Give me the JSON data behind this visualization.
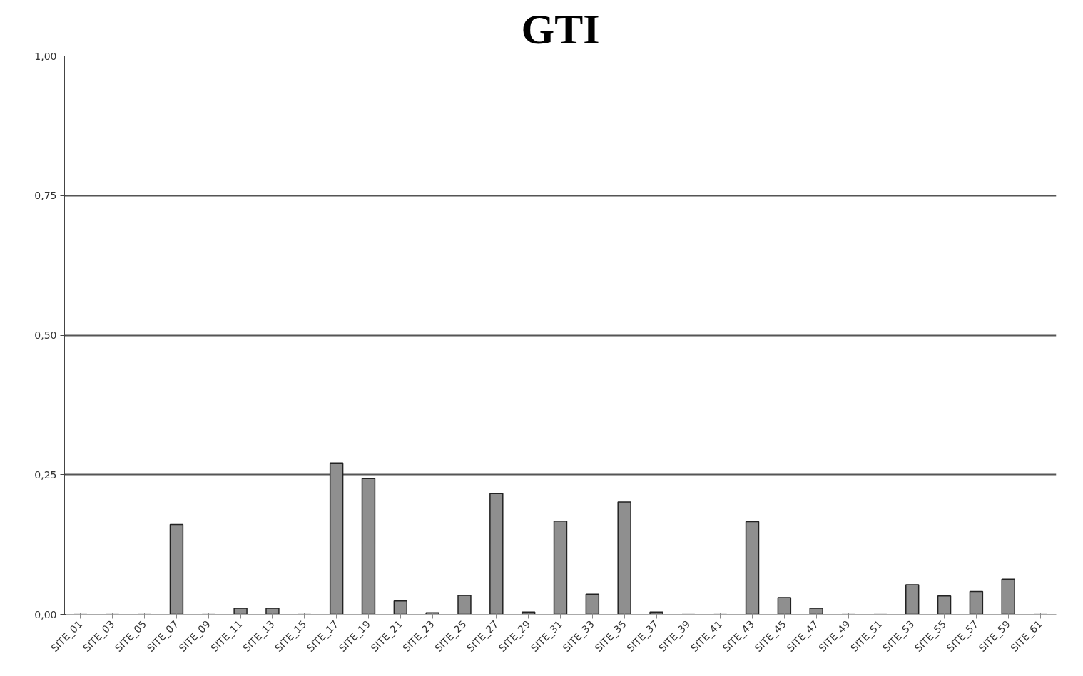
{
  "chart_data": {
    "type": "bar",
    "title": "GTI",
    "categories": [
      "SITE_01",
      "SITE_03",
      "SITE_05",
      "SITE_07",
      "SITE_09",
      "SITE_11",
      "SITE_13",
      "SITE_15",
      "SITE_17",
      "SITE_19",
      "SITE_21",
      "SITE_23",
      "SITE_25",
      "SITE_27",
      "SITE_29",
      "SITE_31",
      "SITE_33",
      "SITE_35",
      "SITE_37",
      "SITE_39",
      "SITE_41",
      "SITE_43",
      "SITE_45",
      "SITE_47",
      "SITE_49",
      "SITE_51",
      "SITE_53",
      "SITE_55",
      "SITE_57",
      "SITE_59",
      "SITE_61"
    ],
    "values": [
      0,
      0,
      0,
      0.161,
      0,
      0.011,
      0.011,
      0,
      0.271,
      0.243,
      0.024,
      0.003,
      0.034,
      0.216,
      0.004,
      0.167,
      0.036,
      0.201,
      0.004,
      0,
      0,
      0.166,
      0.03,
      0.011,
      0,
      0,
      0.053,
      0.033,
      0.041,
      0.063,
      0
    ],
    "color": "#8f8f8f",
    "ylim": [
      0,
      1
    ],
    "yticks": [
      {
        "value": 0,
        "label": "0,00"
      },
      {
        "value": 0.25,
        "label": "0,25"
      },
      {
        "value": 0.5,
        "label": "0,50"
      },
      {
        "value": 0.75,
        "label": "0,75"
      },
      {
        "value": 1,
        "label": "1,00"
      }
    ],
    "grid": "y"
  }
}
